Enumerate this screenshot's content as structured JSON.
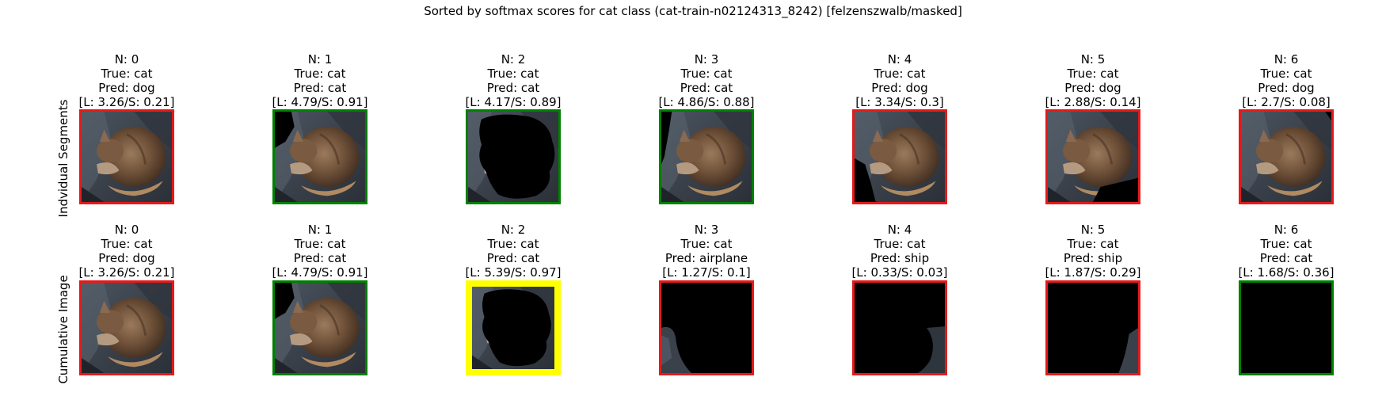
{
  "title": "Sorted by softmax scores for cat class (cat-train-n02124313_8242) [felzenszwalb/masked]",
  "rows": [
    {
      "label": "Indvidual Segments",
      "cells": [
        {
          "n": "N: 0",
          "true": "True: cat",
          "pred": "Pred: dog",
          "score": "[L: 3.26/S: 0.21]",
          "frame": "bad",
          "mask": "none"
        },
        {
          "n": "N: 1",
          "true": "True: cat",
          "pred": "Pred: cat",
          "score": "[L: 4.79/S: 0.91]",
          "frame": "ok",
          "mask": "topleft-small"
        },
        {
          "n": "N: 2",
          "true": "True: cat",
          "pred": "Pred: cat",
          "score": "[L: 4.17/S: 0.89]",
          "frame": "ok",
          "mask": "body"
        },
        {
          "n": "N: 3",
          "true": "True: cat",
          "pred": "Pred: cat",
          "score": "[L: 4.86/S: 0.88]",
          "frame": "ok",
          "mask": "left-strip"
        },
        {
          "n": "N: 4",
          "true": "True: cat",
          "pred": "Pred: dog",
          "score": "[L: 3.34/S: 0.3]",
          "frame": "bad",
          "mask": "bottom-left"
        },
        {
          "n": "N: 5",
          "true": "True: cat",
          "pred": "Pred: dog",
          "score": "[L: 2.88/S: 0.14]",
          "frame": "bad",
          "mask": "bottom-right"
        },
        {
          "n": "N: 6",
          "true": "True: cat",
          "pred": "Pred: dog",
          "score": "[L: 2.7/S: 0.08]",
          "frame": "bad",
          "mask": "tiny"
        }
      ]
    },
    {
      "label": "Cumulative Image",
      "cells": [
        {
          "n": "N: 0",
          "true": "True: cat",
          "pred": "Pred: dog",
          "score": "[L: 3.26/S: 0.21]",
          "frame": "bad",
          "mask": "none"
        },
        {
          "n": "N: 1",
          "true": "True: cat",
          "pred": "Pred: cat",
          "score": "[L: 4.79/S: 0.91]",
          "frame": "ok",
          "mask": "topleft-small"
        },
        {
          "n": "N: 2",
          "true": "True: cat",
          "pred": "Pred: cat",
          "score": "[L: 5.39/S: 0.97]",
          "frame": "best",
          "mask": "body"
        },
        {
          "n": "N: 3",
          "true": "True: cat",
          "pred": "Pred: airplane",
          "score": "[L: 1.27/S: 0.1]",
          "frame": "bad",
          "mask": "cum3"
        },
        {
          "n": "N: 4",
          "true": "True: cat",
          "pred": "Pred: ship",
          "score": "[L: 0.33/S: 0.03]",
          "frame": "bad",
          "mask": "cum4"
        },
        {
          "n": "N: 5",
          "true": "True: cat",
          "pred": "Pred: ship",
          "score": "[L: 1.87/S: 0.29]",
          "frame": "bad",
          "mask": "cum5"
        },
        {
          "n": "N: 6",
          "true": "True: cat",
          "pred": "Pred: cat",
          "score": "[L: 1.68/S: 0.36]",
          "frame": "ok",
          "mask": "all"
        }
      ]
    }
  ],
  "colors": {
    "frame_ok": "#008000",
    "frame_bad": "#e41a1a",
    "frame_best": "#ffff00",
    "masked": "#000000"
  }
}
